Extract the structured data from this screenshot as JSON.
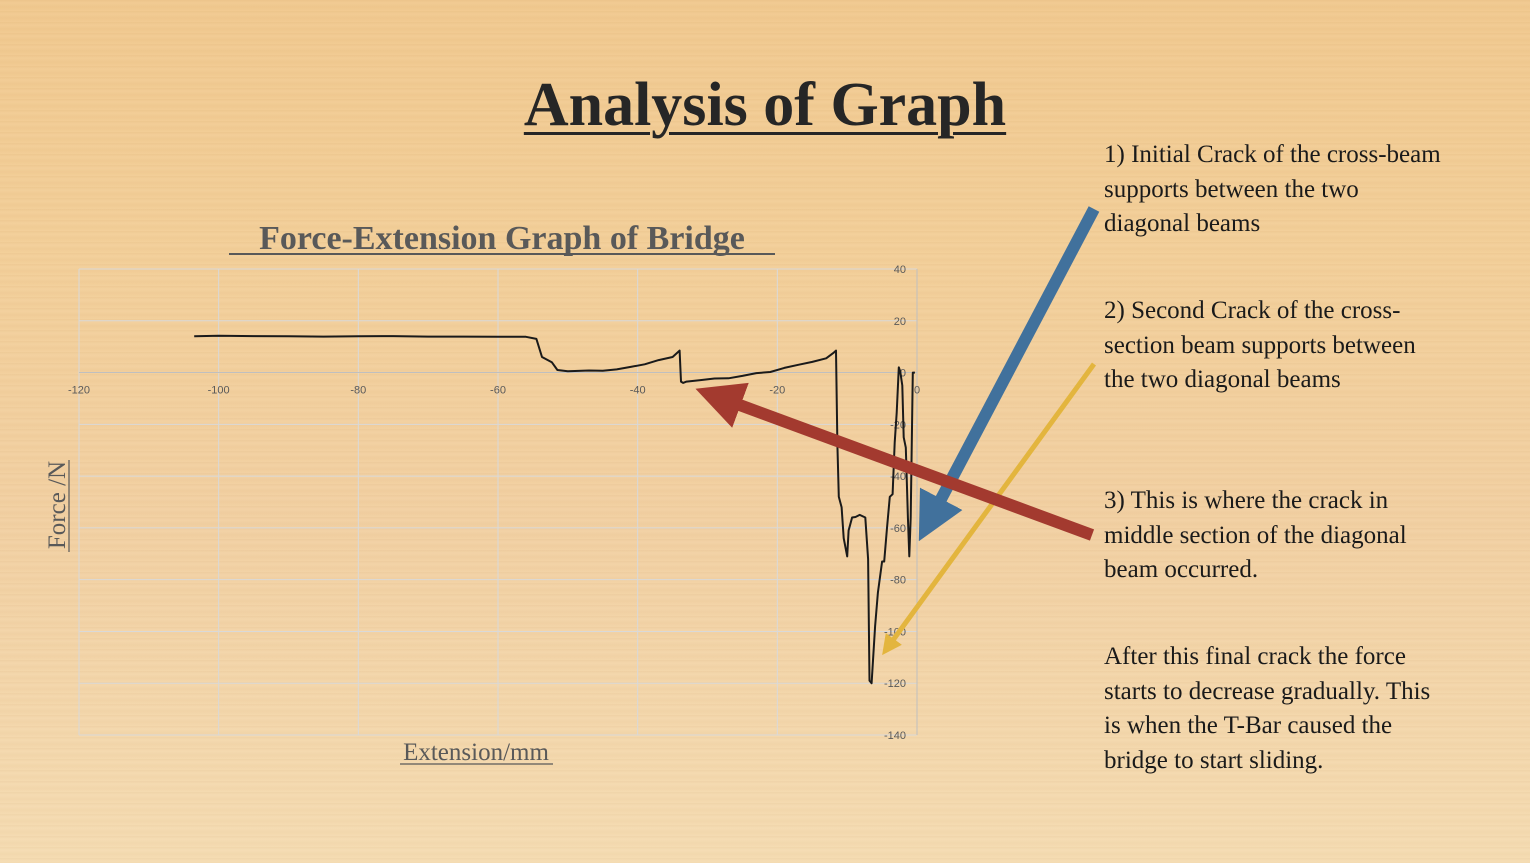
{
  "slide": {
    "title": "Analysis of Graph"
  },
  "notes": [
    "1) Initial Crack of the cross-beam supports between the two diagonal beams",
    "2) Second Crack of the cross-section beam supports between the two diagonal beams",
    "3) This is where the crack in middle section of the diagonal beam occurred.",
    "After this final crack the force starts to decrease gradually. This is when the T-Bar caused the bridge to start sliding."
  ],
  "arrows": [
    {
      "name": "arrow-crack-1",
      "color": "#41719c"
    },
    {
      "name": "arrow-crack-2",
      "color": "#e3b53e"
    },
    {
      "name": "arrow-crack-3",
      "color": "#a33a2f"
    }
  ],
  "chart_data": {
    "type": "line",
    "title": "Force-Extension Graph of Bridge",
    "xlabel": "Extension/mm",
    "ylabel": "Force /N",
    "xlim": [
      -120,
      0
    ],
    "ylim": [
      -140,
      40
    ],
    "xticks": [
      -120,
      -100,
      -80,
      -60,
      -40,
      -20,
      0
    ],
    "yticks": [
      40,
      20,
      0,
      -20,
      -40,
      -60,
      -80,
      -100,
      -120,
      -140
    ],
    "grid": true,
    "line_color": "#1a1a1a",
    "series": [
      {
        "x": [
          -103.5,
          -100,
          -95,
          -90,
          -85,
          -80,
          -75,
          -70,
          -65,
          -60,
          -56,
          -54.5,
          -53.7,
          -53,
          -52.3,
          -51.5,
          -50,
          -47,
          -45,
          -43,
          -41,
          -39,
          -37,
          -35,
          -34,
          -33.8,
          -33.5,
          -33,
          -31,
          -29,
          -27,
          -25,
          -23,
          -21,
          -19,
          -17,
          -15,
          -13,
          -12,
          -11.6,
          -11.4,
          -11.2,
          -10.8,
          -10.5,
          -10,
          -9.8,
          -9.3,
          -8.8,
          -8.2,
          -7.4,
          -7,
          -6.8,
          -6.5,
          -6,
          -5.6,
          -5,
          -4.7,
          -4.3,
          -3.9,
          -3.5,
          -3.2,
          -2.9,
          -2.6,
          -2.4,
          -2.1,
          -1.9,
          -1.6,
          -1.3,
          -1.1,
          -0.9,
          -0.6,
          -0.3
        ],
        "y": [
          14,
          14.2,
          14.1,
          14,
          13.9,
          14,
          14.1,
          13.9,
          13.9,
          13.8,
          13.8,
          13,
          6,
          5,
          4,
          1,
          0.5,
          0.8,
          0.7,
          1.2,
          2.2,
          3.2,
          4.8,
          6,
          8.5,
          -3.5,
          -4,
          -3.5,
          -2.9,
          -2.3,
          -2.2,
          -1.3,
          -0.2,
          0.2,
          1.8,
          3,
          4.1,
          5.5,
          7.5,
          8.5,
          -28,
          -48,
          -52,
          -64,
          -71,
          -61,
          -56,
          -55.8,
          -55,
          -56,
          -72,
          -119,
          -120,
          -98,
          -85,
          -73,
          -73,
          -60,
          -48,
          -47,
          -27,
          -15.5,
          2,
          0.5,
          -5,
          -25,
          -29,
          -56,
          -71,
          -56,
          0,
          0
        ]
      }
    ]
  }
}
